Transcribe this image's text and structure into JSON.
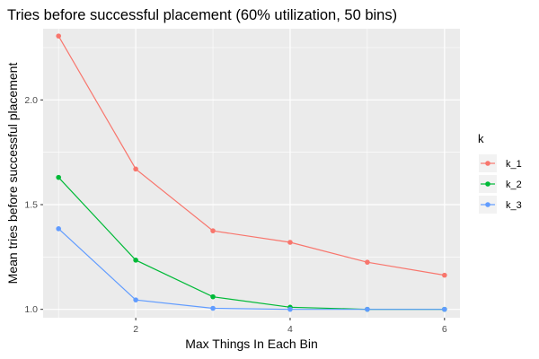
{
  "chart_data": {
    "type": "line",
    "title": "Tries before successful placement (60% utilization, 50 bins)",
    "xlabel": "Max Things In Each Bin",
    "ylabel": "Mean tries before successful placement",
    "x": [
      1,
      2,
      3,
      4,
      5,
      6
    ],
    "xlim": [
      0.8,
      6.2
    ],
    "ylim": [
      0.96,
      2.34
    ],
    "x_ticks": [
      2,
      4,
      6
    ],
    "x_tick_labels": [
      "2",
      "4",
      "6"
    ],
    "y_ticks": [
      1.0,
      1.5,
      2.0
    ],
    "y_tick_labels": [
      "1.0",
      "1.5",
      "2.0"
    ],
    "grid": true,
    "legend": {
      "title": "k",
      "position": "right"
    },
    "series": [
      {
        "name": "k_1",
        "color": "#F8766D",
        "values": [
          2.305,
          1.67,
          1.375,
          1.32,
          1.225,
          1.163
        ]
      },
      {
        "name": "k_2",
        "color": "#00BA38",
        "values": [
          1.63,
          1.235,
          1.06,
          1.01,
          1.0,
          1.0
        ]
      },
      {
        "name": "k_3",
        "color": "#619CFF",
        "values": [
          1.385,
          1.045,
          1.005,
          1.0,
          1.0,
          1.0
        ]
      }
    ]
  }
}
